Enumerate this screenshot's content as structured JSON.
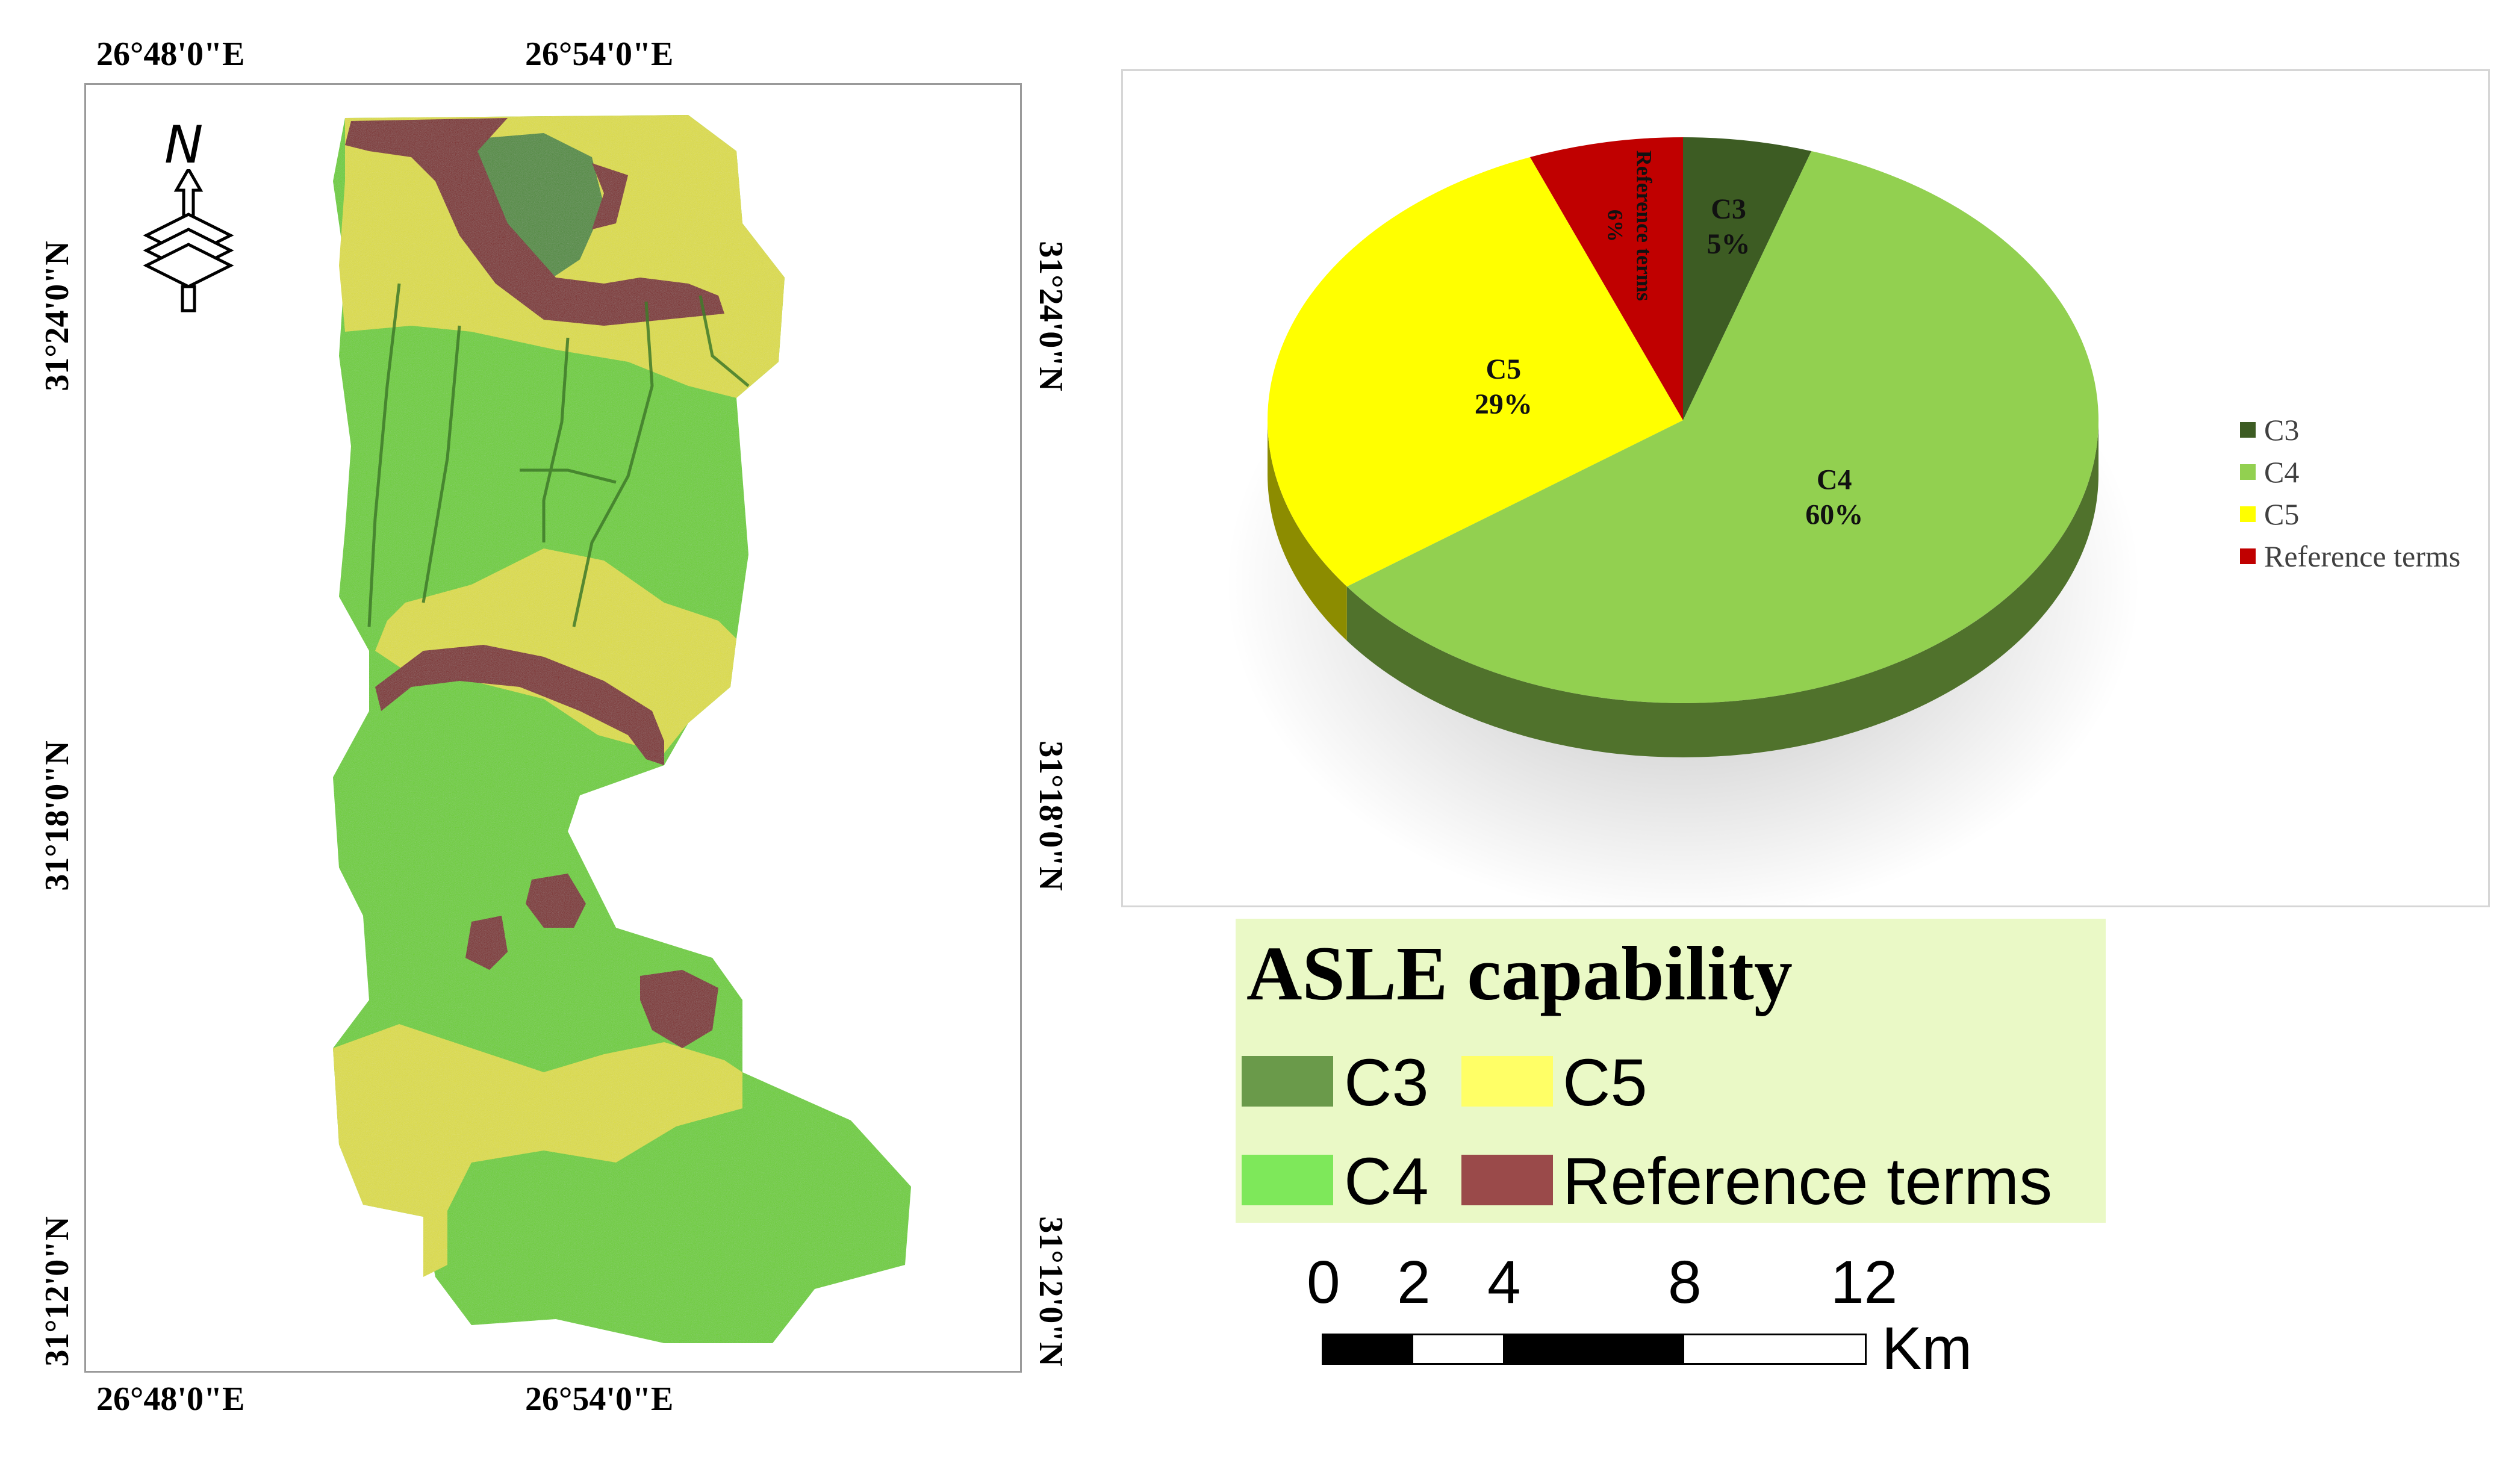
{
  "map": {
    "lon_top_left": "26°48'0\"E",
    "lon_top_mid": "26°54'0\"E",
    "lon_bottom_left": "26°48'0\"E",
    "lon_bottom_mid": "26°54'0\"E",
    "lat_left_1": "31°24'0\"N",
    "lat_left_2": "31°18'0\"N",
    "lat_left_3": "31°12'0\"N",
    "lat_right_1": "31°24'0\"N",
    "lat_right_2": "31°18'0\"N",
    "lat_right_3": "31°12'0\"N",
    "north_arrow_letter": "N",
    "north_arrow_icon": "north-arrow-icon",
    "class_colors": {
      "C3": "#4c8a36",
      "C4": "#6bcf2c",
      "C5": "#dede3c",
      "Reference terms": "#7a2020"
    }
  },
  "chart_data": {
    "type": "pie",
    "slices": [
      {
        "label": "C3",
        "value": 5,
        "display": "5%",
        "color": "#3d5c23"
      },
      {
        "label": "C4",
        "value": 60,
        "display": "60%",
        "color": "#92d050"
      },
      {
        "label": "C5",
        "value": 29,
        "display": "29%",
        "color": "#ffff00"
      },
      {
        "label": "Reference terms",
        "value": 6,
        "display": "6%",
        "color": "#c00000"
      }
    ],
    "legend": [
      "C3",
      "C4",
      "C5",
      "Reference terms"
    ],
    "legend_position": "right",
    "style": "3d"
  },
  "asle_legend": {
    "title": "ASLE capability",
    "items": [
      {
        "label": "C3",
        "color": "#6a9a4a"
      },
      {
        "label": "C5",
        "color": "#ffff66"
      },
      {
        "label": "C4",
        "color": "#7ee85a"
      },
      {
        "label": "Reference terms",
        "color": "#9a4a4a"
      }
    ]
  },
  "scale_bar": {
    "ticks": [
      "0",
      "2",
      "4",
      "8",
      "12"
    ],
    "unit": "Km"
  }
}
